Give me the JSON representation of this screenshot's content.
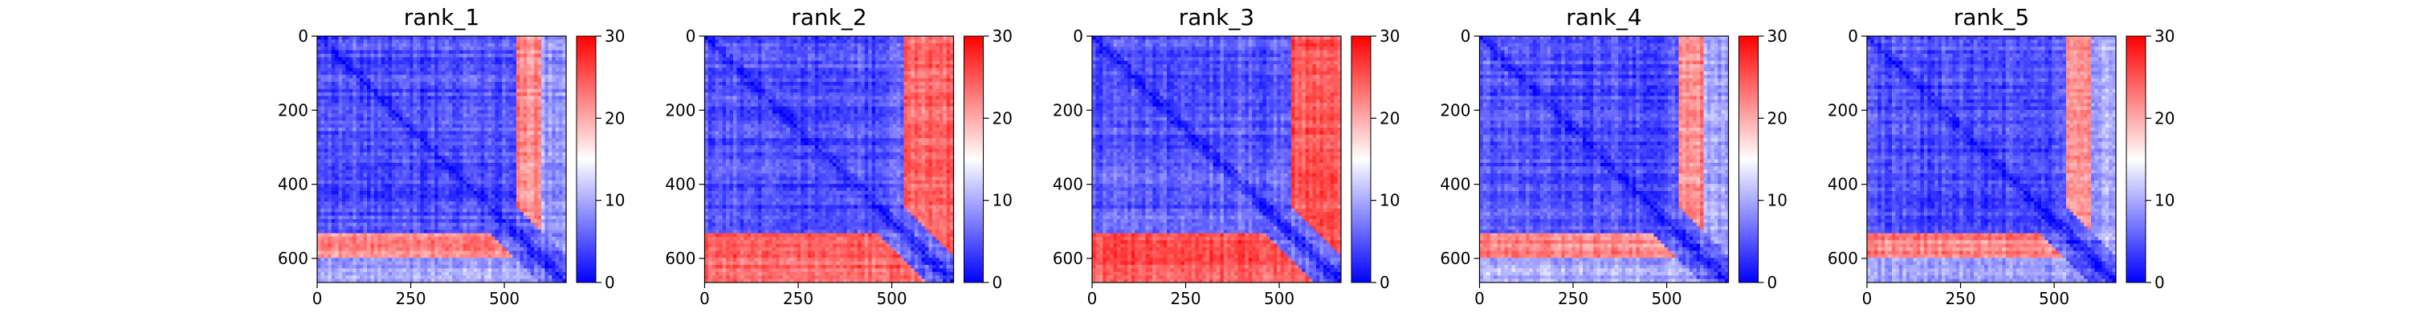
{
  "chart_data": {
    "type": "heatmap",
    "colormap": [
      "#0000ff",
      "#ffffff",
      "#ff0000"
    ],
    "panels": [
      {
        "title": "rank_1",
        "profile": [
          5,
          5,
          4,
          5,
          4,
          5,
          4,
          5,
          22,
          9
        ]
      },
      {
        "title": "rank_2",
        "profile": [
          5,
          5,
          5,
          5,
          4,
          5,
          4,
          6,
          24,
          24
        ]
      },
      {
        "title": "rank_3",
        "profile": [
          5,
          5,
          5,
          5,
          5,
          6,
          5,
          7,
          25,
          25
        ]
      },
      {
        "title": "rank_4",
        "profile": [
          5,
          5,
          4,
          5,
          4,
          5,
          4,
          5,
          22,
          10
        ]
      },
      {
        "title": "rank_5",
        "profile": [
          5,
          5,
          4,
          5,
          4,
          5,
          4,
          5,
          22,
          10
        ]
      }
    ],
    "x_range": [
      0,
      665
    ],
    "y_range": [
      665,
      0
    ],
    "x_ticks": [
      0,
      250,
      500
    ],
    "y_ticks": [
      0,
      200,
      400,
      600
    ],
    "colorbar": {
      "range": [
        0,
        30
      ],
      "ticks": [
        0,
        10,
        20,
        30
      ]
    }
  }
}
